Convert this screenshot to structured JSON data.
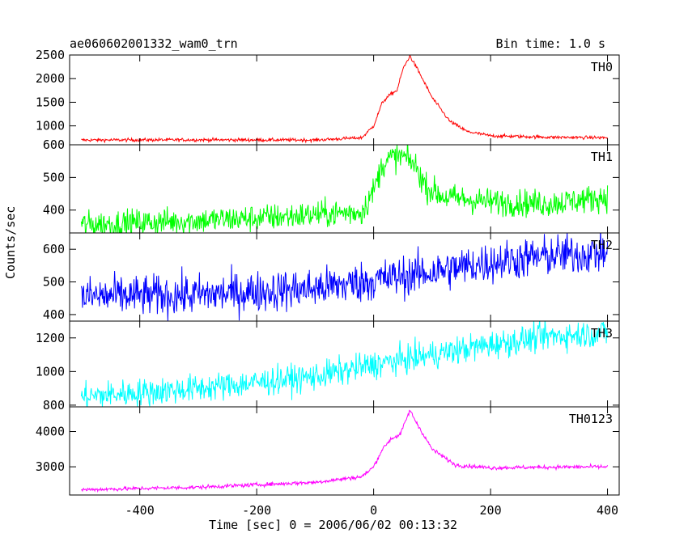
{
  "header": {
    "title": "ae060602001332_wam0_trn",
    "bin_time": "Bin time: 1.0 s"
  },
  "axes": {
    "xlabel": "Time [sec] 0 = 2006/06/02 00:13:32",
    "ylabel": "Counts/sec"
  },
  "chart_data": {
    "type": "line",
    "title": "ae060602001332_wam0_trn",
    "xlabel": "Time [sec] 0 = 2006/06/02 00:13:32",
    "ylabel": "Counts/sec",
    "xlim": [
      -520,
      420
    ],
    "x_ticks": [
      -400,
      -200,
      0,
      200,
      400
    ],
    "x_range_data": [
      -500,
      400
    ],
    "grid": false,
    "legend": "none",
    "panels": [
      {
        "name": "TH0",
        "color": "#ff0000",
        "ylim": [
          600,
          2500
        ],
        "y_ticks": [
          1000,
          1500,
          2000,
          2500
        ],
        "noise": 25,
        "profile": [
          [
            -500,
            700
          ],
          [
            -300,
            705
          ],
          [
            -100,
            700
          ],
          [
            -20,
            750
          ],
          [
            0,
            1000
          ],
          [
            15,
            1500
          ],
          [
            30,
            1680
          ],
          [
            40,
            1750
          ],
          [
            50,
            2200
          ],
          [
            62,
            2480
          ],
          [
            75,
            2200
          ],
          [
            100,
            1600
          ],
          [
            130,
            1100
          ],
          [
            160,
            880
          ],
          [
            200,
            790
          ],
          [
            300,
            760
          ],
          [
            400,
            750
          ]
        ]
      },
      {
        "name": "TH1",
        "color": "#00ff00",
        "ylim": [
          330,
          600
        ],
        "y_ticks": [
          400,
          500,
          600
        ],
        "noise": 30,
        "profile": [
          [
            -500,
            355
          ],
          [
            -200,
            375
          ],
          [
            -20,
            395
          ],
          [
            0,
            460
          ],
          [
            15,
            540
          ],
          [
            30,
            560
          ],
          [
            50,
            565
          ],
          [
            70,
            540
          ],
          [
            90,
            470
          ],
          [
            120,
            440
          ],
          [
            200,
            425
          ],
          [
            300,
            420
          ],
          [
            400,
            440
          ]
        ]
      },
      {
        "name": "TH2",
        "color": "#0000ff",
        "ylim": [
          380,
          650
        ],
        "y_ticks": [
          400,
          500,
          600
        ],
        "noise": 45,
        "profile": [
          [
            -500,
            455
          ],
          [
            -300,
            460
          ],
          [
            -100,
            480
          ],
          [
            0,
            505
          ],
          [
            100,
            530
          ],
          [
            200,
            560
          ],
          [
            300,
            580
          ],
          [
            400,
            590
          ]
        ]
      },
      {
        "name": "TH3",
        "color": "#00ffff",
        "ylim": [
          790,
          1300
        ],
        "y_ticks": [
          800,
          1000,
          1200
        ],
        "noise": 60,
        "profile": [
          [
            -500,
            850
          ],
          [
            -300,
            900
          ],
          [
            -100,
            970
          ],
          [
            0,
            1040
          ],
          [
            100,
            1100
          ],
          [
            200,
            1160
          ],
          [
            300,
            1210
          ],
          [
            400,
            1230
          ]
        ]
      },
      {
        "name": "TH0123",
        "color": "#ff00ff",
        "ylim": [
          2200,
          4700
        ],
        "y_ticks": [
          3000,
          4000
        ],
        "noise": 40,
        "profile": [
          [
            -500,
            2350
          ],
          [
            -300,
            2420
          ],
          [
            -100,
            2560
          ],
          [
            -20,
            2720
          ],
          [
            0,
            3000
          ],
          [
            15,
            3500
          ],
          [
            30,
            3800
          ],
          [
            45,
            3900
          ],
          [
            62,
            4600
          ],
          [
            75,
            4200
          ],
          [
            100,
            3500
          ],
          [
            140,
            3050
          ],
          [
            200,
            2970
          ],
          [
            300,
            2990
          ],
          [
            400,
            3000
          ]
        ]
      }
    ]
  }
}
